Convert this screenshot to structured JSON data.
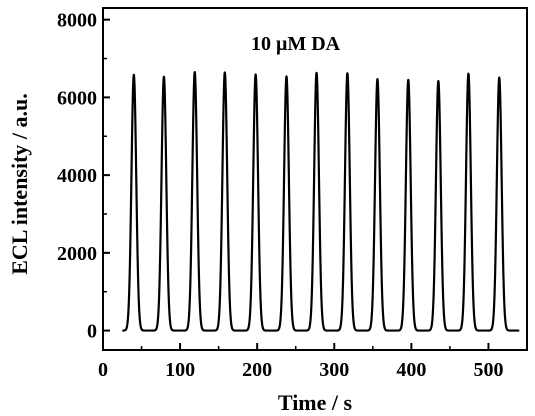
{
  "chart_data": {
    "type": "line",
    "xlabel": "Time / s",
    "ylabel": "ECL intensity / a.u.",
    "annotation": "10 μM  DA",
    "xlim": [
      0,
      550
    ],
    "ylim": [
      -500,
      8300
    ],
    "xticks": [
      "0",
      "100",
      "200",
      "300",
      "400",
      "500"
    ],
    "xtick_values": [
      0,
      100,
      200,
      300,
      400,
      500
    ],
    "yticks": [
      "0",
      "2000",
      "4000",
      "6000",
      "8000"
    ],
    "ytick_values": [
      0,
      2000,
      4000,
      6000,
      8000
    ],
    "grid": false,
    "baseline": 0,
    "x_start": 25,
    "x_end": 540,
    "series": [
      {
        "peak_times": [
          40,
          79,
          119,
          158,
          198,
          238,
          277,
          317,
          356,
          396,
          435,
          474,
          514
        ],
        "peak_heights": [
          6580,
          6530,
          6650,
          6640,
          6590,
          6540,
          6630,
          6620,
          6470,
          6450,
          6420,
          6610,
          6510
        ],
        "color": "#000000"
      }
    ]
  }
}
